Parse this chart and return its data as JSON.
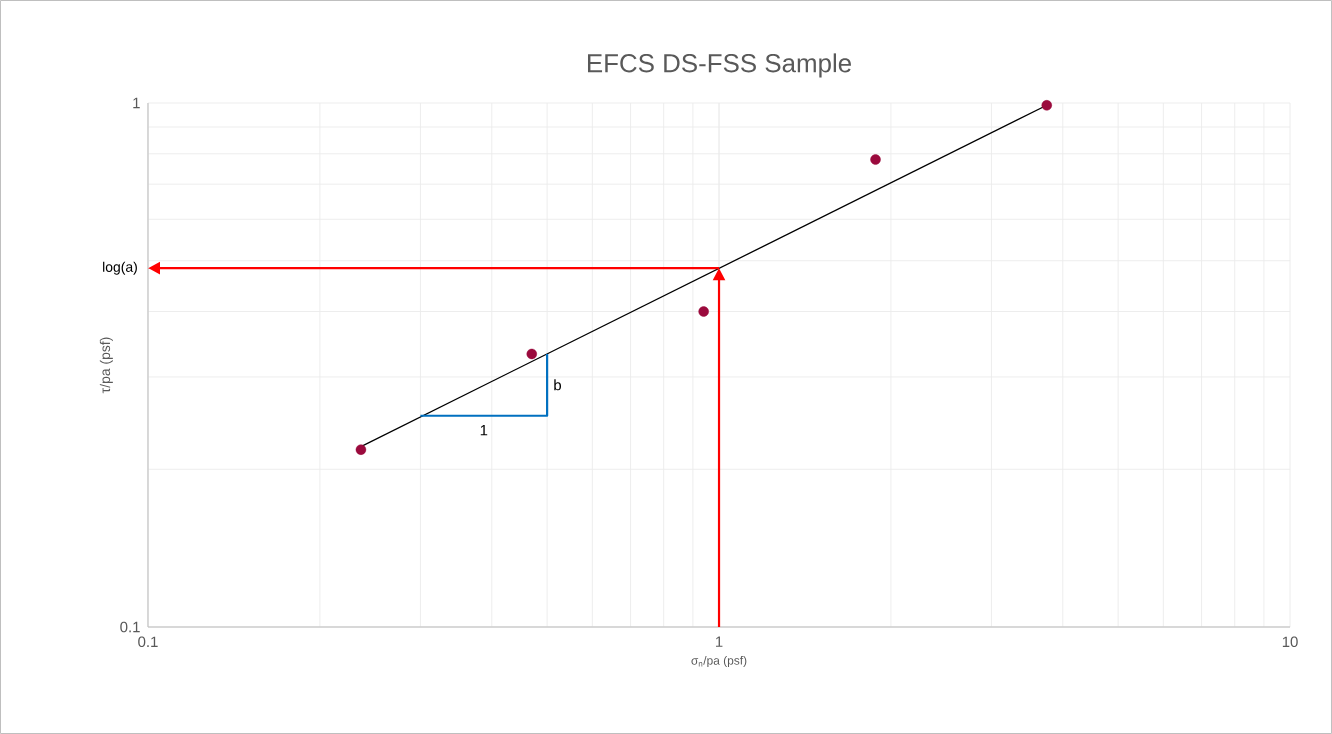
{
  "chart_data": {
    "type": "scatter",
    "title": "EFCS DS-FSS Sample",
    "xlabel": "σ$_{n}$/pa (psf)",
    "ylabel": "τ/pa (psf)",
    "log": "xy",
    "grid": true,
    "legend": false,
    "xlim": [
      0.1,
      10
    ],
    "ylim": [
      0.1,
      1
    ],
    "xticks": [
      0.1,
      1,
      10
    ],
    "yticks": [
      0.1,
      1
    ],
    "series": [
      {
        "color": "#9b0a3d",
        "marker": "circle",
        "x": [
          0.236,
          0.47,
          0.94,
          1.88,
          3.75
        ],
        "values": [
          0.218,
          0.332,
          0.4,
          0.78,
          0.99
        ]
      },
      {
        "type": "line",
        "color": "#000000",
        "marker": "none",
        "x": [
          0.236,
          3.75
        ],
        "values": [
          0.221,
          0.99
        ]
      },
      {
        "type": "line",
        "color": "#0070c0",
        "marker": "none",
        "x": [
          0.3,
          0.5,
          0.5
        ],
        "values": [
          0.253,
          0.253,
          0.332
        ]
      }
    ],
    "ref_lines": [
      {
        "axis": "x",
        "value": 1,
        "color": "#ff0000"
      },
      {
        "axis": "y",
        "value": 0.484,
        "label": "log(a)",
        "color": "#ff0000"
      }
    ],
    "annotations": [
      "1",
      "b"
    ]
  }
}
